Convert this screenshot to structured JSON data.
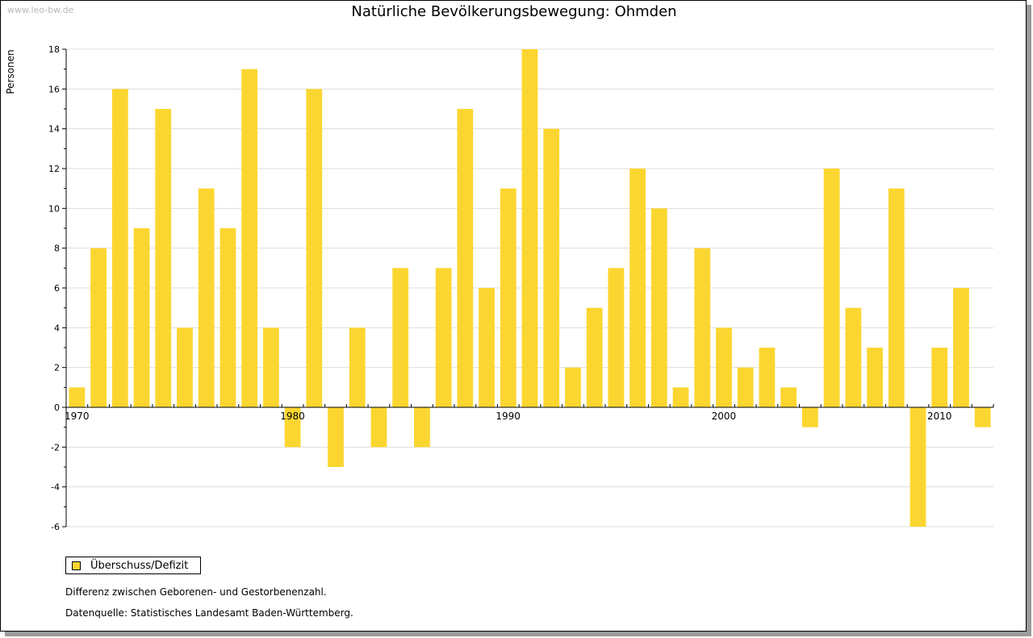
{
  "watermark": "www.leo-bw.de",
  "colors": {
    "bar": "#fcd630",
    "grid": "#dddddd",
    "axis": "#000000"
  },
  "chart_data": {
    "type": "bar",
    "title": "Natürliche Bevölkerungsbewegung: Ohmden",
    "ylabel": "Personen",
    "xlabel": "",
    "ylim": [
      -6,
      18
    ],
    "yticks": [
      -6,
      -4,
      -2,
      0,
      2,
      4,
      6,
      8,
      10,
      12,
      14,
      16,
      18
    ],
    "xtick_labels": [
      "1970",
      "1980",
      "1990",
      "2000",
      "2010"
    ],
    "grid": true,
    "categories": [
      1970,
      1971,
      1972,
      1973,
      1974,
      1975,
      1976,
      1977,
      1978,
      1979,
      1980,
      1981,
      1982,
      1983,
      1984,
      1985,
      1986,
      1987,
      1988,
      1989,
      1990,
      1991,
      1992,
      1993,
      1994,
      1995,
      1996,
      1997,
      1998,
      1999,
      2000,
      2001,
      2002,
      2003,
      2004,
      2005,
      2006,
      2007,
      2008,
      2009,
      2010,
      2011,
      2012
    ],
    "series": [
      {
        "name": "Überschuss/Defizit",
        "values": [
          1,
          8,
          16,
          9,
          15,
          4,
          11,
          9,
          17,
          4,
          -2,
          16,
          -3,
          4,
          -2,
          7,
          -2,
          7,
          15,
          6,
          11,
          18,
          14,
          2,
          5,
          7,
          12,
          10,
          1,
          8,
          4,
          2,
          3,
          1,
          -1,
          12,
          5,
          3,
          11,
          -6,
          3,
          6,
          -1
        ]
      }
    ],
    "legend_position": "bottom-left"
  },
  "notes": [
    "Differenz zwischen Geborenen- und Gestorbenenzahl.",
    "Datenquelle: Statistisches Landesamt Baden-Württemberg."
  ]
}
